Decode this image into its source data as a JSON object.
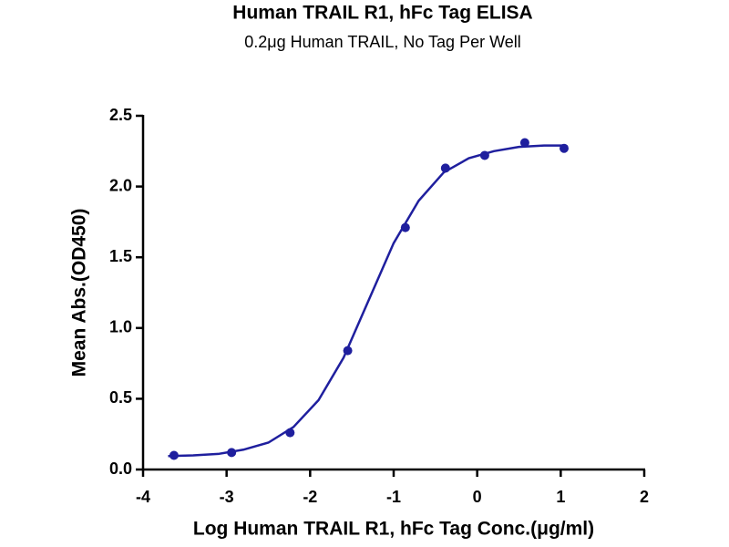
{
  "chart_data": {
    "type": "scatter",
    "title": "Human TRAIL R1, hFc Tag ELISA",
    "subtitle": "0.2μg Human TRAIL, No Tag Per Well",
    "x_label": "Log Human TRAIL R1, hFc Tag Conc.(μg/ml)",
    "y_label": "Mean Abs.(OD450)",
    "color": "#1f1f9e",
    "x": [
      -3.63,
      -2.94,
      -2.24,
      -1.55,
      -0.86,
      -0.38,
      0.09,
      0.57,
      1.04
    ],
    "values": [
      0.1,
      0.12,
      0.26,
      0.84,
      1.71,
      2.13,
      2.22,
      2.31,
      2.27
    ],
    "curve": {
      "x": [
        -3.7,
        -3.4,
        -3.1,
        -2.8,
        -2.5,
        -2.2,
        -1.9,
        -1.6,
        -1.3,
        -1.0,
        -0.7,
        -0.4,
        -0.1,
        0.2,
        0.5,
        0.8,
        1.05
      ],
      "values": [
        0.095,
        0.1,
        0.11,
        0.14,
        0.19,
        0.3,
        0.49,
        0.79,
        1.195,
        1.6,
        1.9,
        2.1,
        2.2,
        2.25,
        2.28,
        2.29,
        2.29
      ]
    },
    "xlim": [
      -4,
      2
    ],
    "xticks": [
      -4,
      -3,
      -2,
      -1,
      0,
      1,
      2
    ],
    "ylim": [
      0,
      2.5
    ],
    "yticks": [
      {
        "value": 0,
        "label": "0.0"
      },
      0.5,
      {
        "value": 1,
        "label": "1.0"
      },
      1.5,
      {
        "value": 2,
        "label": "2.0"
      },
      2.5
    ],
    "grid": false
  }
}
